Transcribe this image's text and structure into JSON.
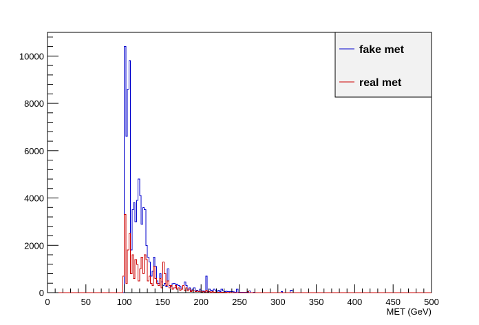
{
  "chart_data": {
    "type": "histogram",
    "xlabel": "MET (GeV)",
    "ylabel": "",
    "xlim": [
      0,
      500
    ],
    "ylim": [
      0,
      11000
    ],
    "bin_width": 2,
    "x_ticks": [
      0,
      50,
      100,
      150,
      200,
      250,
      300,
      350,
      400,
      450,
      500
    ],
    "y_ticks": [
      0,
      2000,
      4000,
      6000,
      8000,
      10000
    ],
    "legend": {
      "position": "top-right"
    },
    "series": [
      {
        "name": "fake met",
        "color": "#0000cc",
        "bins": [
          [
            100,
            10400
          ],
          [
            102,
            6600
          ],
          [
            104,
            8600
          ],
          [
            106,
            9800
          ],
          [
            108,
            1800
          ],
          [
            110,
            3500
          ],
          [
            112,
            3800
          ],
          [
            114,
            3000
          ],
          [
            116,
            3900
          ],
          [
            118,
            4800
          ],
          [
            120,
            4100
          ],
          [
            122,
            2900
          ],
          [
            124,
            3600
          ],
          [
            126,
            3500
          ],
          [
            128,
            2000
          ],
          [
            130,
            1500
          ],
          [
            132,
            1300
          ],
          [
            134,
            700
          ],
          [
            136,
            900
          ],
          [
            138,
            1500
          ],
          [
            140,
            1100
          ],
          [
            142,
            500
          ],
          [
            144,
            400
          ],
          [
            146,
            800
          ],
          [
            148,
            450
          ],
          [
            150,
            300
          ],
          [
            152,
            400
          ],
          [
            154,
            250
          ],
          [
            156,
            1000
          ],
          [
            158,
            300
          ],
          [
            160,
            250
          ],
          [
            162,
            380
          ],
          [
            164,
            400
          ],
          [
            166,
            200
          ],
          [
            168,
            350
          ],
          [
            170,
            300
          ],
          [
            172,
            250
          ],
          [
            174,
            150
          ],
          [
            176,
            300
          ],
          [
            178,
            450
          ],
          [
            180,
            300
          ],
          [
            182,
            150
          ],
          [
            184,
            200
          ],
          [
            186,
            100
          ],
          [
            188,
            150
          ],
          [
            190,
            200
          ],
          [
            192,
            80
          ],
          [
            194,
            100
          ],
          [
            196,
            60
          ],
          [
            198,
            150
          ],
          [
            200,
            80
          ],
          [
            202,
            80
          ],
          [
            204,
            60
          ],
          [
            206,
            700
          ],
          [
            208,
            60
          ],
          [
            210,
            150
          ],
          [
            212,
            100
          ],
          [
            214,
            80
          ],
          [
            216,
            150
          ],
          [
            218,
            100
          ],
          [
            220,
            60
          ],
          [
            222,
            100
          ],
          [
            224,
            50
          ],
          [
            226,
            150
          ],
          [
            228,
            80
          ],
          [
            230,
            40
          ],
          [
            232,
            60
          ],
          [
            234,
            40
          ],
          [
            236,
            50
          ],
          [
            238,
            40
          ],
          [
            240,
            40
          ],
          [
            242,
            30
          ],
          [
            244,
            20
          ],
          [
            246,
            150
          ],
          [
            248,
            20
          ],
          [
            250,
            15
          ],
          [
            252,
            20
          ],
          [
            254,
            15
          ],
          [
            256,
            10
          ],
          [
            258,
            20
          ],
          [
            260,
            10
          ],
          [
            262,
            80
          ],
          [
            264,
            5
          ],
          [
            266,
            5
          ],
          [
            268,
            10
          ],
          [
            270,
            5
          ],
          [
            276,
            5
          ],
          [
            282,
            5
          ],
          [
            288,
            5
          ],
          [
            296,
            5
          ],
          [
            304,
            50
          ],
          [
            316,
            100
          ],
          [
            318,
            80
          ],
          [
            330,
            5
          ],
          [
            344,
            5
          ]
        ]
      },
      {
        "name": "real met",
        "color": "#cc0000",
        "bins": [
          [
            98,
            700
          ],
          [
            100,
            3300
          ],
          [
            102,
            400
          ],
          [
            104,
            1800
          ],
          [
            106,
            2500
          ],
          [
            108,
            800
          ],
          [
            110,
            1600
          ],
          [
            112,
            600
          ],
          [
            114,
            1400
          ],
          [
            116,
            1200
          ],
          [
            118,
            500
          ],
          [
            120,
            1000
          ],
          [
            122,
            1500
          ],
          [
            124,
            800
          ],
          [
            126,
            1600
          ],
          [
            128,
            1400
          ],
          [
            130,
            500
          ],
          [
            132,
            700
          ],
          [
            134,
            400
          ],
          [
            136,
            300
          ],
          [
            138,
            1100
          ],
          [
            140,
            600
          ],
          [
            142,
            400
          ],
          [
            144,
            300
          ],
          [
            146,
            600
          ],
          [
            148,
            200
          ],
          [
            150,
            1300
          ],
          [
            152,
            800
          ],
          [
            154,
            300
          ],
          [
            156,
            500
          ],
          [
            158,
            200
          ],
          [
            160,
            300
          ],
          [
            162,
            150
          ],
          [
            164,
            200
          ],
          [
            166,
            300
          ],
          [
            168,
            150
          ],
          [
            170,
            200
          ],
          [
            172,
            100
          ],
          [
            174,
            150
          ],
          [
            176,
            300
          ],
          [
            178,
            100
          ],
          [
            180,
            200
          ],
          [
            182,
            80
          ],
          [
            184,
            150
          ],
          [
            186,
            50
          ],
          [
            188,
            100
          ],
          [
            190,
            80
          ],
          [
            192,
            50
          ],
          [
            194,
            80
          ],
          [
            196,
            40
          ],
          [
            198,
            60
          ],
          [
            200,
            30
          ],
          [
            202,
            50
          ],
          [
            204,
            30
          ],
          [
            206,
            100
          ],
          [
            208,
            30
          ],
          [
            210,
            50
          ],
          [
            212,
            20
          ],
          [
            214,
            40
          ],
          [
            216,
            20
          ],
          [
            218,
            30
          ],
          [
            220,
            20
          ],
          [
            222,
            15
          ],
          [
            224,
            20
          ],
          [
            226,
            10
          ],
          [
            228,
            15
          ],
          [
            230,
            10
          ],
          [
            232,
            10
          ],
          [
            234,
            5
          ],
          [
            236,
            8
          ],
          [
            240,
            5
          ],
          [
            246,
            5
          ],
          [
            252,
            5
          ],
          [
            260,
            50
          ]
        ]
      }
    ]
  }
}
